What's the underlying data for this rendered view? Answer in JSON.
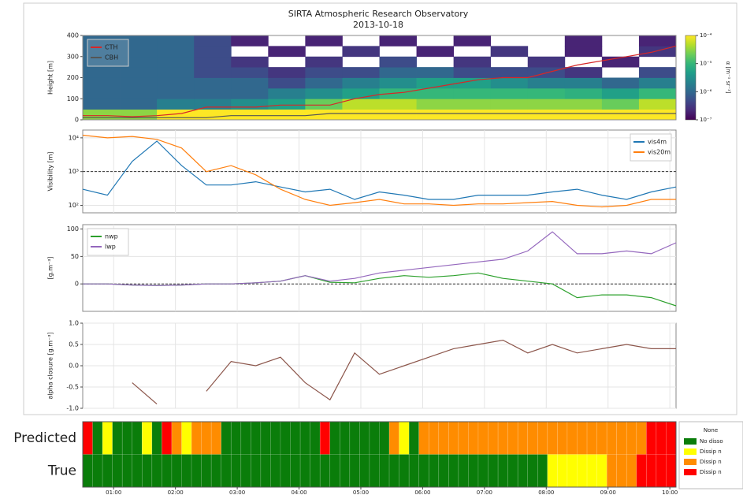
{
  "chart_data": [
    {
      "type": "heatmap",
      "title": "SIRTA Atmospheric Research Observatory",
      "subtitle": "2013-10-18",
      "ylabel": "Height [m]",
      "ylim": [
        0,
        400
      ],
      "yticks": [
        0,
        100,
        200,
        300,
        400
      ],
      "colorbar_label": "α [m⁻¹ sr⁻¹]",
      "clim": [
        1e-07,
        0.0001
      ],
      "log_color": true,
      "colorbar_ticks": [
        {
          "value": 1e-07,
          "label": "10⁻⁷"
        },
        {
          "value": 1e-06,
          "label": "10⁻⁶"
        },
        {
          "value": 1e-05,
          "label": "10⁻⁵"
        },
        {
          "value": 0.0001,
          "label": "10⁻⁴"
        }
      ],
      "cells": [
        [
          3e-05,
          3e-05,
          0.0001,
          0.0001,
          0.0001,
          0.0001,
          0.0001,
          0.0001,
          0.0001,
          0.0001,
          0.0001,
          0.0001,
          0.0001,
          0.0001,
          0.0001,
          0.0001
        ],
        [
          1e-06,
          1e-06,
          2e-06,
          2e-06,
          3e-06,
          5e-06,
          2e-05,
          5e-05,
          5e-05,
          3e-05,
          3e-05,
          3e-05,
          3e-05,
          3e-05,
          2e-05,
          5e-05
        ],
        [
          1e-06,
          1e-06,
          1e-06,
          1e-06,
          1e-06,
          2e-06,
          3e-06,
          5e-06,
          1e-05,
          1e-05,
          1e-05,
          1e-05,
          1e-05,
          8e-06,
          5e-06,
          1e-05
        ],
        [
          1e-06,
          1e-06,
          1e-06,
          1e-06,
          1e-06,
          5e-07,
          1e-06,
          2e-06,
          3e-06,
          5e-06,
          5e-06,
          3e-06,
          2e-06,
          2e-06,
          1e-06,
          2e-06
        ],
        [
          1e-06,
          1e-06,
          1e-06,
          5e-07,
          5e-07,
          3e-07,
          5e-07,
          5e-07,
          1e-06,
          1e-06,
          5e-07,
          5e-07,
          5e-07,
          3e-07,
          null,
          5e-07
        ],
        [
          1e-06,
          1e-06,
          1e-06,
          5e-07,
          3e-07,
          null,
          3e-07,
          null,
          5e-07,
          null,
          3e-07,
          null,
          3e-07,
          null,
          2e-07,
          null
        ],
        [
          1e-06,
          1e-06,
          1e-06,
          5e-07,
          null,
          2e-07,
          null,
          3e-07,
          null,
          2e-07,
          null,
          3e-07,
          null,
          2e-07,
          null,
          3e-07
        ],
        [
          1e-06,
          1e-06,
          1e-06,
          5e-07,
          2e-07,
          null,
          2e-07,
          null,
          2e-07,
          null,
          2e-07,
          null,
          null,
          2e-07,
          null,
          2e-07
        ]
      ],
      "x": [
        0.5,
        0.9,
        1.3,
        1.7,
        2.1,
        2.5,
        2.9,
        3.3,
        3.7,
        4.1,
        4.5,
        4.9,
        5.3,
        5.7,
        6.1,
        6.5,
        6.9,
        7.3,
        7.7,
        8.1,
        8.5,
        8.9,
        9.3,
        9.7,
        10.1
      ],
      "legend": "upper left",
      "series": [
        {
          "name": "CTH",
          "color": "#d62728",
          "values": [
            20,
            20,
            15,
            20,
            30,
            60,
            60,
            60,
            70,
            70,
            70,
            100,
            120,
            130,
            150,
            170,
            190,
            200,
            200,
            230,
            260,
            280,
            300,
            320,
            350
          ]
        },
        {
          "name": "CBH",
          "color": "#555555",
          "values": [
            10,
            10,
            10,
            10,
            10,
            10,
            20,
            20,
            20,
            20,
            30,
            30,
            30,
            30,
            30,
            30,
            30,
            30,
            30,
            30,
            30,
            30,
            30,
            30,
            30
          ]
        }
      ]
    },
    {
      "type": "line",
      "ylabel": "Visibility [m]",
      "ylog": true,
      "ylim": [
        60,
        17000
      ],
      "grid": true,
      "hline": 1000,
      "yticks": [
        {
          "value": 100,
          "label": "10²"
        },
        {
          "value": 1000,
          "label": "10³"
        },
        {
          "value": 10000,
          "label": "10⁴"
        }
      ],
      "x": [
        0.5,
        0.9,
        1.3,
        1.7,
        2.1,
        2.5,
        2.9,
        3.3,
        3.7,
        4.1,
        4.5,
        4.9,
        5.3,
        5.7,
        6.1,
        6.5,
        6.9,
        7.3,
        7.7,
        8.1,
        8.5,
        8.9,
        9.3,
        9.7,
        10.1
      ],
      "legend": "upper right",
      "series": [
        {
          "name": "vis4m",
          "color": "#1f77b4",
          "values": [
            300,
            200,
            2000,
            8000,
            1500,
            400,
            400,
            500,
            350,
            250,
            300,
            150,
            250,
            200,
            150,
            150,
            200,
            200,
            200,
            250,
            300,
            200,
            150,
            250,
            350
          ]
        },
        {
          "name": "vis20m",
          "color": "#ff7f0e",
          "values": [
            12000,
            10000,
            11000,
            9000,
            5000,
            1000,
            1500,
            800,
            300,
            150,
            100,
            120,
            150,
            110,
            110,
            100,
            110,
            110,
            120,
            130,
            100,
            90,
            100,
            150,
            150
          ]
        }
      ]
    },
    {
      "type": "line",
      "ylabel": "[g.m⁻³]",
      "ylim": [
        -50,
        108
      ],
      "yticks": [
        0,
        50,
        100
      ],
      "grid": true,
      "hline": 0,
      "x": [
        0.5,
        0.9,
        1.3,
        1.7,
        2.1,
        2.5,
        2.9,
        3.3,
        3.7,
        4.1,
        4.5,
        4.9,
        5.3,
        5.7,
        6.1,
        6.5,
        6.9,
        7.3,
        7.7,
        8.1,
        8.5,
        8.9,
        9.3,
        9.7,
        10.1
      ],
      "legend": "upper left",
      "series": [
        {
          "name": "nwp",
          "color": "#2ca02c",
          "values": [
            0,
            0,
            -2,
            -3,
            -2,
            0,
            0,
            2,
            5,
            15,
            3,
            2,
            10,
            15,
            12,
            15,
            20,
            10,
            5,
            0,
            -25,
            -20,
            -20,
            -25,
            -40
          ]
        },
        {
          "name": "lwp",
          "color": "#9467bd",
          "values": [
            0,
            0,
            -2,
            -3,
            -2,
            0,
            0,
            2,
            5,
            15,
            5,
            10,
            20,
            25,
            30,
            35,
            40,
            45,
            60,
            95,
            55,
            55,
            60,
            55,
            75
          ]
        }
      ]
    },
    {
      "type": "line",
      "ylabel": "alpha closure [g.m⁻³]",
      "ylim": [
        -1,
        1
      ],
      "grid": true,
      "yticks": [
        {
          "value": -1,
          "label": "-1.0"
        },
        {
          "value": -0.5,
          "label": "-0.5"
        },
        {
          "value": 0,
          "label": "0.0"
        },
        {
          "value": 0.5,
          "label": "0.5"
        },
        {
          "value": 1,
          "label": "1.0"
        }
      ],
      "x": [
        0.5,
        0.9,
        1.3,
        1.7,
        2.1,
        2.5,
        2.9,
        3.3,
        3.7,
        4.1,
        4.5,
        4.9,
        5.3,
        5.7,
        6.1,
        6.5,
        6.9,
        7.3,
        7.7,
        8.1,
        8.5,
        8.9,
        9.3,
        9.7,
        10.1
      ],
      "series": [
        {
          "color": "#8c564b",
          "values": [
            null,
            null,
            -0.4,
            -0.9,
            null,
            -0.6,
            0.1,
            0.0,
            0.2,
            -0.4,
            -0.8,
            0.3,
            -0.2,
            0.0,
            0.2,
            0.4,
            0.5,
            0.6,
            0.3,
            0.5,
            0.3,
            0.4,
            0.5,
            0.4,
            0.4
          ]
        }
      ]
    },
    {
      "type": "classbar",
      "xlim": [
        0.5,
        10.1
      ],
      "xticks": [
        {
          "value": 1,
          "label": "01:00"
        },
        {
          "value": 2,
          "label": "02:00"
        },
        {
          "value": 3,
          "label": "03:00"
        },
        {
          "value": 4,
          "label": "04:00"
        },
        {
          "value": 5,
          "label": "05:00"
        },
        {
          "value": 6,
          "label": "06:00"
        },
        {
          "value": 7,
          "label": "07:00"
        },
        {
          "value": 8,
          "label": "08:00"
        },
        {
          "value": 9,
          "label": "09:00"
        },
        {
          "value": 10,
          "label": "10:00"
        }
      ],
      "legend_title": "None",
      "classes": [
        {
          "name": "No disso",
          "color": "#0a7d0a"
        },
        {
          "name": "Dissip n",
          "color": "#ffff00"
        },
        {
          "name": "Dissip n",
          "color": "#ff8c00"
        },
        {
          "name": "Dissip n",
          "color": "#ff0000"
        }
      ],
      "rows": [
        {
          "name": "Predicted",
          "values": [
            3,
            0,
            1,
            0,
            0,
            0,
            1,
            0,
            3,
            2,
            1,
            2,
            2,
            2,
            0,
            0,
            0,
            0,
            0,
            0,
            0,
            0,
            0,
            0,
            3,
            0,
            0,
            0,
            0,
            0,
            0,
            2,
            1,
            0,
            2,
            2,
            2,
            2,
            2,
            2,
            2,
            2,
            2,
            2,
            2,
            2,
            2,
            2,
            2,
            2,
            2,
            2,
            2,
            2,
            2,
            2,
            2,
            3,
            3,
            3
          ]
        },
        {
          "name": "True",
          "values": [
            0,
            0,
            0,
            0,
            0,
            0,
            0,
            0,
            0,
            0,
            0,
            0,
            0,
            0,
            0,
            0,
            0,
            0,
            0,
            0,
            0,
            0,
            0,
            0,
            0,
            0,
            0,
            0,
            0,
            0,
            0,
            0,
            0,
            0,
            0,
            0,
            0,
            0,
            0,
            0,
            0,
            0,
            0,
            0,
            0,
            0,
            0,
            1,
            1,
            1,
            1,
            1,
            1,
            2,
            2,
            2,
            3,
            3,
            3,
            3
          ]
        }
      ]
    }
  ]
}
